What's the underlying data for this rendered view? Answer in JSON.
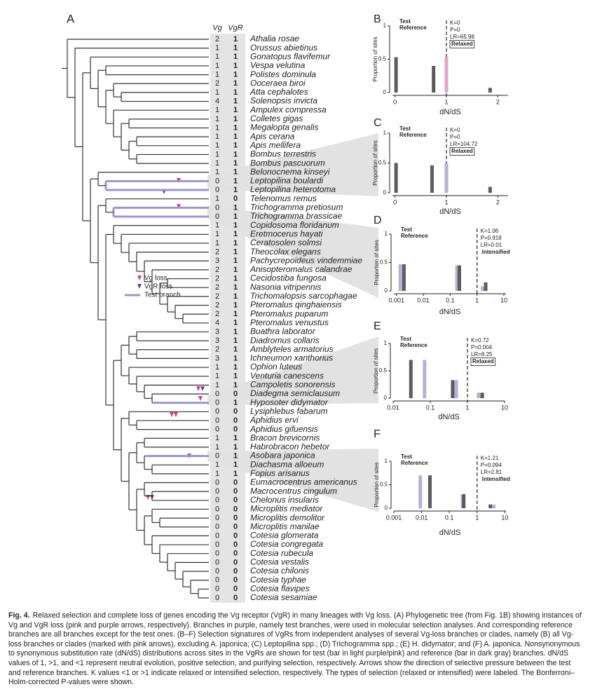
{
  "tree": {
    "panel_label": "A",
    "columns": [
      "Vg",
      "VgR"
    ],
    "rows": [
      {
        "species": "Athalia rosae",
        "vg": 2,
        "vgr": 1
      },
      {
        "species": "Orussus abietinus",
        "vg": 1,
        "vgr": 1
      },
      {
        "species": "Gonatopus flavifemur",
        "vg": 1,
        "vgr": 1
      },
      {
        "species": "Vespa velutina",
        "vg": 1,
        "vgr": 1
      },
      {
        "species": "Polistes dominula",
        "vg": 1,
        "vgr": 1
      },
      {
        "species": "Ooceraea biroi",
        "vg": 2,
        "vgr": 1
      },
      {
        "species": "Atta cephalotes",
        "vg": 1,
        "vgr": 1
      },
      {
        "species": "Solenopsis invicta",
        "vg": 4,
        "vgr": 1
      },
      {
        "species": "Ampulex compressa",
        "vg": 1,
        "vgr": 1
      },
      {
        "species": "Colletes gigas",
        "vg": 1,
        "vgr": 1
      },
      {
        "species": "Megalopta genalis",
        "vg": 1,
        "vgr": 1
      },
      {
        "species": "Apis cerana",
        "vg": 1,
        "vgr": 1
      },
      {
        "species": "Apis mellifera",
        "vg": 1,
        "vgr": 1
      },
      {
        "species": "Bombus terrestris",
        "vg": 1,
        "vgr": 1
      },
      {
        "species": "Bombus pascuorum",
        "vg": 1,
        "vgr": 1
      },
      {
        "species": "Belonocnema kinseyi",
        "vg": 1,
        "vgr": 1
      },
      {
        "species": "Leptopilina boulardi",
        "vg": 0,
        "vgr": 1
      },
      {
        "species": "Leptopilina heterotoma",
        "vg": 0,
        "vgr": 1
      },
      {
        "species": "Telenomus remus",
        "vg": 1,
        "vgr": 0
      },
      {
        "species": "Trichogramma pretiosum",
        "vg": 0,
        "vgr": 1
      },
      {
        "species": "Trichogramma brassicae",
        "vg": 0,
        "vgr": 1
      },
      {
        "species": "Copidosoma floridanum",
        "vg": 1,
        "vgr": 1
      },
      {
        "species": "Eretmocerus hayati",
        "vg": 1,
        "vgr": 1
      },
      {
        "species": "Ceratosolen solmsi",
        "vg": 1,
        "vgr": 1
      },
      {
        "species": "Theocolax elegans",
        "vg": 2,
        "vgr": 1
      },
      {
        "species": "Pachycrepoideus vindemmiae",
        "vg": 3,
        "vgr": 1
      },
      {
        "species": "Anisopteromalus calandrae",
        "vg": 2,
        "vgr": 1
      },
      {
        "species": "Cecidostiba fungosa",
        "vg": 2,
        "vgr": 1
      },
      {
        "species": "Nasonia vitripennis",
        "vg": 2,
        "vgr": 1
      },
      {
        "species": "Trichomalopsis sarcophagae",
        "vg": 2,
        "vgr": 1
      },
      {
        "species": "Pteromalus qinghaiensis",
        "vg": 2,
        "vgr": 1
      },
      {
        "species": "Pteromalus puparum",
        "vg": 2,
        "vgr": 1
      },
      {
        "species": "Pteromalus venustus",
        "vg": 4,
        "vgr": 1
      },
      {
        "species": "Buathra laborator",
        "vg": 3,
        "vgr": 1
      },
      {
        "species": "Diadromus collaris",
        "vg": 3,
        "vgr": 1
      },
      {
        "species": "Amblyteles armatorius",
        "vg": 2,
        "vgr": 1
      },
      {
        "species": "Ichneumon xanthorius",
        "vg": 3,
        "vgr": 1
      },
      {
        "species": "Ophion luteus",
        "vg": 1,
        "vgr": 1
      },
      {
        "species": "Venturia canescens",
        "vg": 1,
        "vgr": 1
      },
      {
        "species": "Campoletis sonorensis",
        "vg": 1,
        "vgr": 1
      },
      {
        "species": "Diadegma semiclausum",
        "vg": 0,
        "vgr": 0
      },
      {
        "species": "Hyposoter didymator",
        "vg": 0,
        "vgr": 1
      },
      {
        "species": "Lysiphlebus fabarum",
        "vg": 0,
        "vgr": 0
      },
      {
        "species": "Aphidius ervi",
        "vg": 0,
        "vgr": 0
      },
      {
        "species": "Aphidius gifuensis",
        "vg": 0,
        "vgr": 0
      },
      {
        "species": "Bracon brevicornis",
        "vg": 1,
        "vgr": 1
      },
      {
        "species": "Habrobracon hebetor",
        "vg": 1,
        "vgr": 1
      },
      {
        "species": "Asobara japonica",
        "vg": 0,
        "vgr": 1
      },
      {
        "species": "Diachasma alloeum",
        "vg": 1,
        "vgr": 1
      },
      {
        "species": "Fopius arisanus",
        "vg": 1,
        "vgr": 1
      },
      {
        "species": "Eumacrocentrus americanus",
        "vg": 0,
        "vgr": 0
      },
      {
        "species": "Macrocentrus cingulum",
        "vg": 0,
        "vgr": 0
      },
      {
        "species": "Chelonus insularis",
        "vg": 0,
        "vgr": 0
      },
      {
        "species": "Microplitis mediator",
        "vg": 0,
        "vgr": 0
      },
      {
        "species": "Microplitis demolitor",
        "vg": 0,
        "vgr": 0
      },
      {
        "species": "Microplitis manilae",
        "vg": 0,
        "vgr": 0
      },
      {
        "species": "Cotesia glomerata",
        "vg": 0,
        "vgr": 0
      },
      {
        "species": "Cotesia congregata",
        "vg": 0,
        "vgr": 0
      },
      {
        "species": "Cotesia rubecula",
        "vg": 0,
        "vgr": 0
      },
      {
        "species": "Cotesia vestalis",
        "vg": 0,
        "vgr": 0
      },
      {
        "species": "Cotesia chilonis",
        "vg": 0,
        "vgr": 0
      },
      {
        "species": "Cotesia typhae",
        "vg": 0,
        "vgr": 0
      },
      {
        "species": "Cotesia flavipes",
        "vg": 0,
        "vgr": 0
      },
      {
        "species": "Cotesia sesamiae",
        "vg": 0,
        "vgr": 0
      }
    ],
    "legend": [
      "Vg loss",
      "VgR loss",
      "Test branch"
    ]
  },
  "panels": [
    {
      "label": "B",
      "stats": [
        "K=0",
        "P=0",
        "LR=65.98"
      ],
      "selection": "Relaxed",
      "ylabel": "Proportion of sites",
      "xlabel": "dN/dS",
      "log": false,
      "xlim": [
        -0.05,
        2.2
      ],
      "xticks": [
        0,
        1,
        2
      ],
      "ylim": [
        0,
        1
      ],
      "yticks": [
        0,
        0.5,
        1
      ],
      "reference_line": 1,
      "series": [
        {
          "name": "Test",
          "color": "#e6a4c4",
          "x": [
            1,
            1,
            1
          ],
          "values": [
            0.53,
            0.4,
            0.07
          ]
        },
        {
          "name": "Reference",
          "color": "#5c5c5c",
          "x": [
            0.02,
            0.75,
            1.85
          ],
          "values": [
            0.53,
            0.4,
            0.07
          ]
        }
      ]
    },
    {
      "label": "C",
      "stats": [
        "K=0",
        "P=0",
        "LR=104.72"
      ],
      "selection": "Relaxed",
      "ylabel": "Proportion of sites",
      "xlabel": "dN/dS",
      "log": false,
      "xlim": [
        -0.05,
        2.2
      ],
      "xticks": [
        0,
        1,
        2
      ],
      "ylim": [
        0,
        1
      ],
      "yticks": [
        0,
        0.5,
        1
      ],
      "reference_line": 1,
      "series": [
        {
          "name": "Test",
          "color": "#b4b1d8",
          "x": [
            1,
            1,
            1
          ],
          "values": [
            0.5,
            0.46,
            0.1
          ]
        },
        {
          "name": "Reference",
          "color": "#5c5c5c",
          "x": [
            0.02,
            0.72,
            1.85
          ],
          "values": [
            0.5,
            0.46,
            0.1
          ]
        }
      ]
    },
    {
      "label": "D",
      "stats": [
        "K=1.06",
        "P=0.918",
        "LR=0.01"
      ],
      "selection": "Intensified",
      "ylabel": "Proportion of sites",
      "xlabel": "dN/dS",
      "log": true,
      "xlim": [
        0.0008,
        12
      ],
      "xticks": [
        0.001,
        0.01,
        0.1,
        1,
        10
      ],
      "ylim": [
        0,
        1
      ],
      "yticks": [
        0,
        0.5,
        1
      ],
      "reference_line": 1,
      "series": [
        {
          "name": "Test",
          "color": "#b4b1d8",
          "x": [
            0.0014,
            0.18,
            1.6
          ],
          "values": [
            0.47,
            0.45,
            0.08
          ]
        },
        {
          "name": "Reference",
          "color": "#5c5c5c",
          "x": [
            0.0019,
            0.22,
            2.1
          ],
          "values": [
            0.47,
            0.45,
            0.15
          ]
        }
      ]
    },
    {
      "label": "E",
      "stats": [
        "K=0.72",
        "P=0.004",
        "LR=8.25"
      ],
      "selection": "Relaxed",
      "ylabel": "Proportion of sites",
      "xlabel": "dN/dS",
      "log": true,
      "xlim": [
        0.01,
        10
      ],
      "xticks": [
        0.01,
        0.1,
        1,
        10
      ],
      "ylim": [
        0,
        1
      ],
      "yticks": [
        0,
        0.5,
        1
      ],
      "reference_line": 1,
      "series": [
        {
          "name": "Test",
          "color": "#b4b1d8",
          "x": [
            0.07,
            0.5,
            2.0
          ],
          "values": [
            0.7,
            0.33,
            0.1
          ]
        },
        {
          "name": "Reference",
          "color": "#5c5c5c",
          "x": [
            0.03,
            0.4,
            2.5
          ],
          "values": [
            0.7,
            0.33,
            0.1
          ]
        }
      ]
    },
    {
      "label": "F",
      "stats": [
        "K=1.21",
        "P=0.094",
        "LR=2.81"
      ],
      "selection": "Intensified",
      "ylabel": "Proportion of sites",
      "xlabel": "dN/dS",
      "log": true,
      "xlim": [
        0.001,
        11
      ],
      "xticks": [
        0.001,
        0.01,
        0.1,
        1,
        10
      ],
      "ylim": [
        0,
        1
      ],
      "yticks": [
        0,
        0.5,
        1
      ],
      "reference_line": 1,
      "series": [
        {
          "name": "Test",
          "color": "#b4b1d8",
          "x": [
            0.009,
            0.3,
            4
          ],
          "values": [
            0.7,
            0.3,
            0.08
          ]
        },
        {
          "name": "Reference",
          "color": "#5c5c5c",
          "x": [
            0.02,
            0.33,
            3
          ],
          "values": [
            0.7,
            0.3,
            0.08
          ]
        }
      ]
    }
  ],
  "caption": {
    "label": "Fig. 4.",
    "text": "Relaxed selection and complete loss of genes encoding the Vg receptor (VgR) in many lineages with Vg loss. (A) Phylogenetic tree (from Fig. 1B) showing instances of Vg and VgR loss (pink and purple arrows, respectively). Branches in purple, namely test branches, were used in molecular selection analyses. And corresponding reference branches are all branches except for the test ones. (B–F) Selection signatures of VgRs from independent analyses of several Vg-loss branches or clades, namely (B) all Vg-loss branches or clades (marked with pink arrows), excluding A. japonica; (C) Leptopilina spp.; (D) Trichogramma spp.; (E) H. didymator; and (F) A. japonica. Nonsynonymous to synonymous substitution rate (dN/dS) distributions across sites in the VgRs are shown for test (bar in light purple/pink) and reference (bar in dark gray) branches. dN/dS values of 1, >1, and <1 represent neutral evolution, positive selection, and purifying selection, respectively. Arrows show the direction of selective pressure between the test and reference branches. K values <1 or >1 indicate relaxed or intensified selection, respectively. The types of selection (relaxed or intensified) were labeled. The Bonferroni–Holm-corrected P-values were shown."
  }
}
